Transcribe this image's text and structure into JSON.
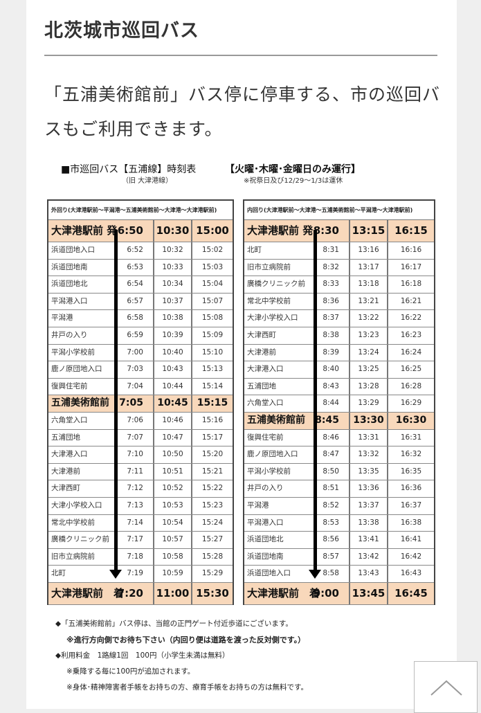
{
  "title": "北茨城市巡回バス",
  "lead": "「五浦美術館前」バス停に停車する、市の巡回バスもご利用できます。",
  "timetable": {
    "caption": "■市巡回バス【五浦線】時刻表",
    "caption_sub": "（旧 大津港線）",
    "days": "【火曜･木曜･金曜日のみ運行】",
    "days_sub": "※祝祭日及び12/29～1/3は運休",
    "outer": {
      "header": "外回り(大津港駅前～平潟港～五浦美術館前～大津港～大津港駅前)",
      "start": {
        "name": "大津港駅前 発",
        "times": [
          "6:50",
          "10:30",
          "15:00"
        ]
      },
      "stops": [
        [
          "浜道団地入口",
          "6:52",
          "10:32",
          "15:02"
        ],
        [
          "浜道団地南",
          "6:53",
          "10:33",
          "15:03"
        ],
        [
          "浜道団地北",
          "6:54",
          "10:34",
          "15:04"
        ],
        [
          "平潟港入口",
          "6:57",
          "10:37",
          "15:07"
        ],
        [
          "平潟港",
          "6:58",
          "10:38",
          "15:08"
        ],
        [
          "井戸の入り",
          "6:59",
          "10:39",
          "15:09"
        ],
        [
          "平潟小学校前",
          "7:00",
          "10:40",
          "15:10"
        ],
        [
          "鹿ノ原団地入口",
          "7:03",
          "10:43",
          "15:13"
        ],
        [
          "復興住宅前",
          "7:04",
          "10:44",
          "15:14"
        ],
        [
          "五浦美術館前",
          "7:05",
          "10:45",
          "15:15"
        ],
        [
          "六角堂入口",
          "7:06",
          "10:46",
          "15:16"
        ],
        [
          "五浦団地",
          "7:07",
          "10:47",
          "15:17"
        ],
        [
          "大津港入口",
          "7:10",
          "10:50",
          "15:20"
        ],
        [
          "大津港前",
          "7:11",
          "10:51",
          "15:21"
        ],
        [
          "大津西町",
          "7:12",
          "10:52",
          "15:22"
        ],
        [
          "大津小学校入口",
          "7:13",
          "10:53",
          "15:23"
        ],
        [
          "常北中学校前",
          "7:14",
          "10:54",
          "15:24"
        ],
        [
          "廣橋クリニック前",
          "7:17",
          "10:57",
          "15:27"
        ],
        [
          "旧市立病院前",
          "7:18",
          "10:58",
          "15:28"
        ],
        [
          "北町",
          "7:19",
          "10:59",
          "15:29"
        ]
      ],
      "end": {
        "name": "大津港駅前　着",
        "times": [
          "7:20",
          "11:00",
          "15:30"
        ]
      }
    },
    "inner": {
      "header": "内回り(大津港駅前～大津港～五浦美術館前～平潟港～大津港駅前)",
      "start": {
        "name": "大津港駅前 発",
        "times": [
          "8:30",
          "13:15",
          "16:15"
        ]
      },
      "stops": [
        [
          "北町",
          "8:31",
          "13:16",
          "16:16"
        ],
        [
          "旧市立病院前",
          "8:32",
          "13:17",
          "16:17"
        ],
        [
          "廣橋クリニック前",
          "8:33",
          "13:18",
          "16:18"
        ],
        [
          "常北中学校前",
          "8:36",
          "13:21",
          "16:21"
        ],
        [
          "大津小学校入口",
          "8:37",
          "13:22",
          "16:22"
        ],
        [
          "大津西町",
          "8:38",
          "13:23",
          "16:23"
        ],
        [
          "大津港前",
          "8:39",
          "13:24",
          "16:24"
        ],
        [
          "大津港入口",
          "8:40",
          "13:25",
          "16:25"
        ],
        [
          "五浦団地",
          "8:43",
          "13:28",
          "16:28"
        ],
        [
          "六角堂入口",
          "8:44",
          "13:29",
          "16:29"
        ],
        [
          "五浦美術館前",
          "8:45",
          "13:30",
          "16:30"
        ],
        [
          "復興住宅前",
          "8:46",
          "13:31",
          "16:31"
        ],
        [
          "鹿ノ原団地入口",
          "8:47",
          "13:32",
          "16:32"
        ],
        [
          "平潟小学校前",
          "8:50",
          "13:35",
          "16:35"
        ],
        [
          "井戸の入り",
          "8:51",
          "13:36",
          "16:36"
        ],
        [
          "平潟港",
          "8:52",
          "13:37",
          "16:37"
        ],
        [
          "平潟港入口",
          "8:53",
          "13:38",
          "16:38"
        ],
        [
          "浜道団地北",
          "8:56",
          "13:41",
          "16:41"
        ],
        [
          "浜道団地南",
          "8:57",
          "13:42",
          "16:42"
        ],
        [
          "浜道団地入口",
          "8:58",
          "13:43",
          "16:43"
        ]
      ],
      "end": {
        "name": "大津港駅前　着",
        "times": [
          "9:00",
          "13:45",
          "16:45"
        ]
      }
    },
    "highlight_stop": "五浦美術館前",
    "highlight_color": "#f8d8bb"
  },
  "notes": {
    "stop_location": "◆「五浦美術館前」バス停は、当館の正門ゲート付近歩道にございます。",
    "wait_side": "※進行方向側でお待ち下さい（内回り便は道路を渡った反対側です。）",
    "fare": "◆利用料金　1路線1回　100円（小学生未満は無料）",
    "fare_note1": "※乗降する毎に100円が追加されます。",
    "fare_note2": "※身体･精神障害者手帳をお持ちの方、療育手帳をお持ちの方は無料です。"
  },
  "scroll_top_icon": "chevron-up-icon"
}
